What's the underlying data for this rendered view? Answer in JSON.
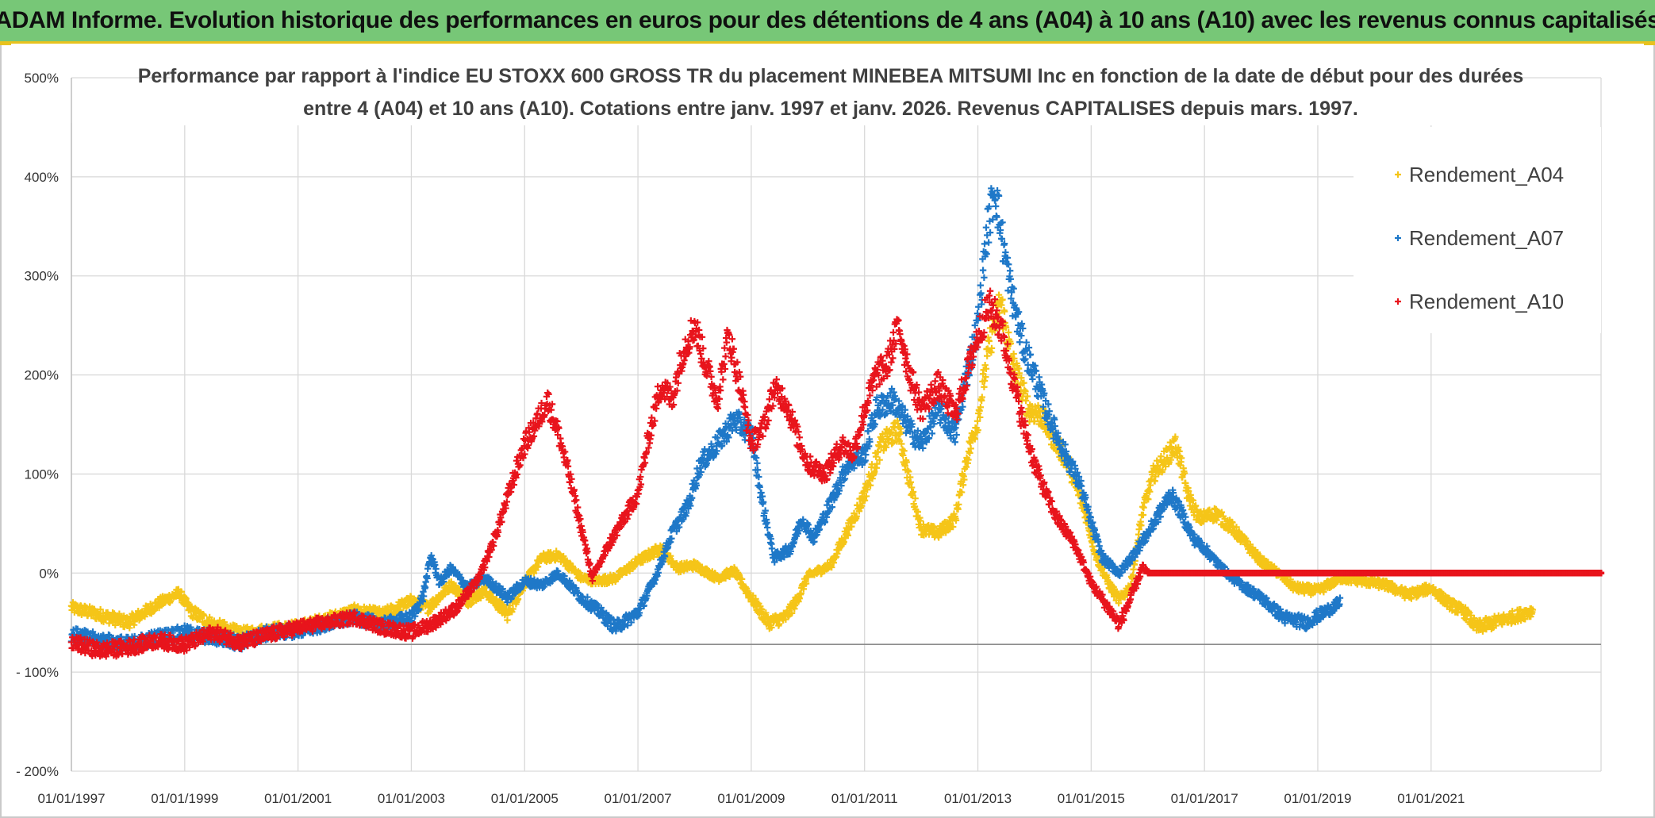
{
  "header": {
    "title": "ADAM Informe. Evolution historique des performances en euros pour des détentions de 4 ans (A04) à 10 ans (A10) avec les revenus connus capitalisés"
  },
  "chart_data": {
    "type": "scatter",
    "title_lines": [
      "Performance par rapport à l'indice EU STOXX 600 GROSS TR  du placement MINEBEA MITSUMI Inc en fonction de la date de début pour des durées",
      "entre 4 (A04) et 10 ans (A10). Cotations entre janv. 1997 et janv. 2026. Revenus CAPITALISES depuis mars. 1997."
    ],
    "xlabel": "",
    "ylabel": "",
    "xlim": [
      1997.0,
      2024.0
    ],
    "ylim": [
      -200,
      500
    ],
    "y_ticks": [
      500,
      400,
      300,
      200,
      100,
      0,
      -100,
      -200
    ],
    "y_tick_labels": [
      "500%",
      "400%",
      "300%",
      "200%",
      "100%",
      "0%",
      "- 100%",
      "- 200%"
    ],
    "x_ticks": [
      1997,
      1999,
      2001,
      2003,
      2005,
      2007,
      2009,
      2011,
      2013,
      2015,
      2017,
      2019,
      2021
    ],
    "x_tick_labels": [
      "01/01/1997",
      "01/01/1999",
      "01/01/2001",
      "01/01/2003",
      "01/01/2005",
      "01/01/2007",
      "01/01/2009",
      "01/01/2011",
      "01/01/2013",
      "01/01/2015",
      "01/01/2017",
      "01/01/2019",
      "01/01/2021"
    ],
    "grid": true,
    "legend_position": "top-right",
    "marker": "+",
    "series": [
      {
        "name": "Rendement_A04",
        "color": "#f5c518",
        "points": [
          [
            1997.0,
            -35
          ],
          [
            1997.5,
            -42
          ],
          [
            1998.0,
            -50
          ],
          [
            1998.5,
            -32
          ],
          [
            1998.9,
            -20
          ],
          [
            1999.1,
            -38
          ],
          [
            1999.5,
            -52
          ],
          [
            2000.0,
            -62
          ],
          [
            2000.5,
            -58
          ],
          [
            2001.0,
            -55
          ],
          [
            2001.5,
            -47
          ],
          [
            2002.0,
            -38
          ],
          [
            2002.5,
            -42
          ],
          [
            2003.0,
            -28
          ],
          [
            2003.3,
            -35
          ],
          [
            2003.7,
            -12
          ],
          [
            2004.0,
            -28
          ],
          [
            2004.3,
            -18
          ],
          [
            2004.7,
            -42
          ],
          [
            2005.0,
            -10
          ],
          [
            2005.3,
            15
          ],
          [
            2005.6,
            18
          ],
          [
            2006.0,
            -5
          ],
          [
            2006.3,
            -8
          ],
          [
            2006.6,
            -5
          ],
          [
            2007.0,
            12
          ],
          [
            2007.4,
            25
          ],
          [
            2007.7,
            5
          ],
          [
            2008.0,
            8
          ],
          [
            2008.4,
            -5
          ],
          [
            2008.7,
            2
          ],
          [
            2009.0,
            -25
          ],
          [
            2009.3,
            -50
          ],
          [
            2009.6,
            -45
          ],
          [
            2009.8,
            -28
          ],
          [
            2010.0,
            -3
          ],
          [
            2010.4,
            8
          ],
          [
            2010.8,
            55
          ],
          [
            2011.0,
            80
          ],
          [
            2011.3,
            130
          ],
          [
            2011.6,
            145
          ],
          [
            2011.8,
            90
          ],
          [
            2012.0,
            45
          ],
          [
            2012.3,
            40
          ],
          [
            2012.6,
            55
          ],
          [
            2012.8,
            115
          ],
          [
            2013.0,
            155
          ],
          [
            2013.2,
            230
          ],
          [
            2013.4,
            275
          ],
          [
            2013.6,
            215
          ],
          [
            2013.9,
            165
          ],
          [
            2014.1,
            160
          ],
          [
            2014.3,
            140
          ],
          [
            2014.6,
            110
          ],
          [
            2014.9,
            60
          ],
          [
            2015.1,
            15
          ],
          [
            2015.3,
            -10
          ],
          [
            2015.5,
            -28
          ],
          [
            2015.7,
            -12
          ],
          [
            2015.9,
            60
          ],
          [
            2016.1,
            100
          ],
          [
            2016.3,
            115
          ],
          [
            2016.5,
            130
          ],
          [
            2016.7,
            80
          ],
          [
            2016.9,
            55
          ],
          [
            2017.2,
            60
          ],
          [
            2017.5,
            45
          ],
          [
            2017.8,
            25
          ],
          [
            2018.0,
            12
          ],
          [
            2018.3,
            0
          ],
          [
            2018.6,
            -15
          ],
          [
            2019.0,
            -18
          ],
          [
            2019.4,
            -5
          ],
          [
            2019.8,
            -8
          ],
          [
            2020.2,
            -12
          ],
          [
            2020.6,
            -22
          ],
          [
            2021.0,
            -15
          ],
          [
            2021.3,
            -30
          ],
          [
            2021.6,
            -40
          ],
          [
            2021.8,
            -55
          ],
          [
            2022.1,
            -50
          ],
          [
            2022.4,
            -45
          ],
          [
            2022.8,
            -38
          ]
        ]
      },
      {
        "name": "Rendement_A07",
        "color": "#1f78c8",
        "points": [
          [
            1997.0,
            -62
          ],
          [
            1997.5,
            -68
          ],
          [
            1998.0,
            -72
          ],
          [
            1998.5,
            -65
          ],
          [
            1999.0,
            -60
          ],
          [
            1999.5,
            -65
          ],
          [
            2000.0,
            -70
          ],
          [
            2000.5,
            -60
          ],
          [
            2001.0,
            -58
          ],
          [
            2001.5,
            -52
          ],
          [
            2002.0,
            -45
          ],
          [
            2002.5,
            -52
          ],
          [
            2003.0,
            -45
          ],
          [
            2003.2,
            -25
          ],
          [
            2003.35,
            18
          ],
          [
            2003.5,
            -10
          ],
          [
            2003.7,
            5
          ],
          [
            2004.0,
            -15
          ],
          [
            2004.3,
            -5
          ],
          [
            2004.7,
            -25
          ],
          [
            2005.0,
            -8
          ],
          [
            2005.3,
            -12
          ],
          [
            2005.6,
            0
          ],
          [
            2006.0,
            -25
          ],
          [
            2006.3,
            -38
          ],
          [
            2006.6,
            -55
          ],
          [
            2007.0,
            -40
          ],
          [
            2007.3,
            -5
          ],
          [
            2007.6,
            40
          ],
          [
            2007.9,
            70
          ],
          [
            2008.1,
            110
          ],
          [
            2008.4,
            130
          ],
          [
            2008.7,
            155
          ],
          [
            2009.0,
            140
          ],
          [
            2009.2,
            70
          ],
          [
            2009.4,
            15
          ],
          [
            2009.7,
            25
          ],
          [
            2009.9,
            55
          ],
          [
            2010.1,
            35
          ],
          [
            2010.4,
            70
          ],
          [
            2010.7,
            110
          ],
          [
            2011.0,
            120
          ],
          [
            2011.2,
            165
          ],
          [
            2011.5,
            175
          ],
          [
            2011.8,
            145
          ],
          [
            2012.0,
            130
          ],
          [
            2012.3,
            165
          ],
          [
            2012.6,
            140
          ],
          [
            2012.8,
            200
          ],
          [
            2013.0,
            250
          ],
          [
            2013.15,
            340
          ],
          [
            2013.3,
            390
          ],
          [
            2013.45,
            330
          ],
          [
            2013.6,
            280
          ],
          [
            2013.8,
            230
          ],
          [
            2014.0,
            200
          ],
          [
            2014.2,
            165
          ],
          [
            2014.5,
            125
          ],
          [
            2014.8,
            90
          ],
          [
            2015.0,
            50
          ],
          [
            2015.2,
            15
          ],
          [
            2015.5,
            0
          ],
          [
            2015.7,
            15
          ],
          [
            2016.0,
            40
          ],
          [
            2016.2,
            60
          ],
          [
            2016.4,
            80
          ],
          [
            2016.6,
            60
          ],
          [
            2016.8,
            35
          ],
          [
            2017.0,
            25
          ],
          [
            2017.3,
            5
          ],
          [
            2017.6,
            -10
          ],
          [
            2018.0,
            -25
          ],
          [
            2018.4,
            -45
          ],
          [
            2018.8,
            -50
          ],
          [
            2019.1,
            -40
          ],
          [
            2019.4,
            -30
          ]
        ]
      },
      {
        "name": "Rendement_A10",
        "color": "#e8141c",
        "points": [
          [
            1997.0,
            -70
          ],
          [
            1997.5,
            -78
          ],
          [
            1998.0,
            -75
          ],
          [
            1998.5,
            -68
          ],
          [
            1999.0,
            -72
          ],
          [
            1999.5,
            -60
          ],
          [
            2000.0,
            -70
          ],
          [
            2000.5,
            -62
          ],
          [
            2001.0,
            -55
          ],
          [
            2001.5,
            -50
          ],
          [
            2002.0,
            -45
          ],
          [
            2002.5,
            -55
          ],
          [
            2003.0,
            -60
          ],
          [
            2003.4,
            -50
          ],
          [
            2003.8,
            -35
          ],
          [
            2004.2,
            -5
          ],
          [
            2004.5,
            40
          ],
          [
            2004.8,
            95
          ],
          [
            2005.0,
            130
          ],
          [
            2005.2,
            150
          ],
          [
            2005.4,
            175
          ],
          [
            2005.6,
            140
          ],
          [
            2005.8,
            95
          ],
          [
            2006.0,
            45
          ],
          [
            2006.2,
            -5
          ],
          [
            2006.5,
            30
          ],
          [
            2006.8,
            60
          ],
          [
            2007.0,
            80
          ],
          [
            2007.2,
            140
          ],
          [
            2007.4,
            190
          ],
          [
            2007.6,
            175
          ],
          [
            2007.8,
            225
          ],
          [
            2008.0,
            250
          ],
          [
            2008.2,
            210
          ],
          [
            2008.4,
            175
          ],
          [
            2008.6,
            240
          ],
          [
            2008.8,
            190
          ],
          [
            2009.0,
            130
          ],
          [
            2009.2,
            145
          ],
          [
            2009.4,
            185
          ],
          [
            2009.6,
            175
          ],
          [
            2009.8,
            140
          ],
          [
            2010.0,
            110
          ],
          [
            2010.3,
            100
          ],
          [
            2010.6,
            130
          ],
          [
            2010.8,
            120
          ],
          [
            2011.0,
            165
          ],
          [
            2011.2,
            200
          ],
          [
            2011.4,
            210
          ],
          [
            2011.6,
            250
          ],
          [
            2011.8,
            200
          ],
          [
            2012.0,
            165
          ],
          [
            2012.3,
            190
          ],
          [
            2012.6,
            160
          ],
          [
            2012.8,
            200
          ],
          [
            2013.0,
            240
          ],
          [
            2013.2,
            270
          ],
          [
            2013.4,
            250
          ],
          [
            2013.6,
            200
          ],
          [
            2013.8,
            150
          ],
          [
            2014.0,
            110
          ],
          [
            2014.2,
            80
          ],
          [
            2014.4,
            55
          ],
          [
            2014.7,
            30
          ],
          [
            2015.0,
            -10
          ],
          [
            2015.3,
            -35
          ],
          [
            2015.5,
            -52
          ],
          [
            2015.7,
            -25
          ],
          [
            2015.9,
            5
          ],
          [
            2016.0,
            0
          ],
          [
            2017.0,
            0
          ],
          [
            2018.0,
            0
          ],
          [
            2019.0,
            0
          ],
          [
            2020.0,
            0
          ],
          [
            2021.0,
            0
          ],
          [
            2022.0,
            0
          ],
          [
            2023.0,
            0
          ],
          [
            2024.0,
            0
          ]
        ]
      }
    ]
  }
}
